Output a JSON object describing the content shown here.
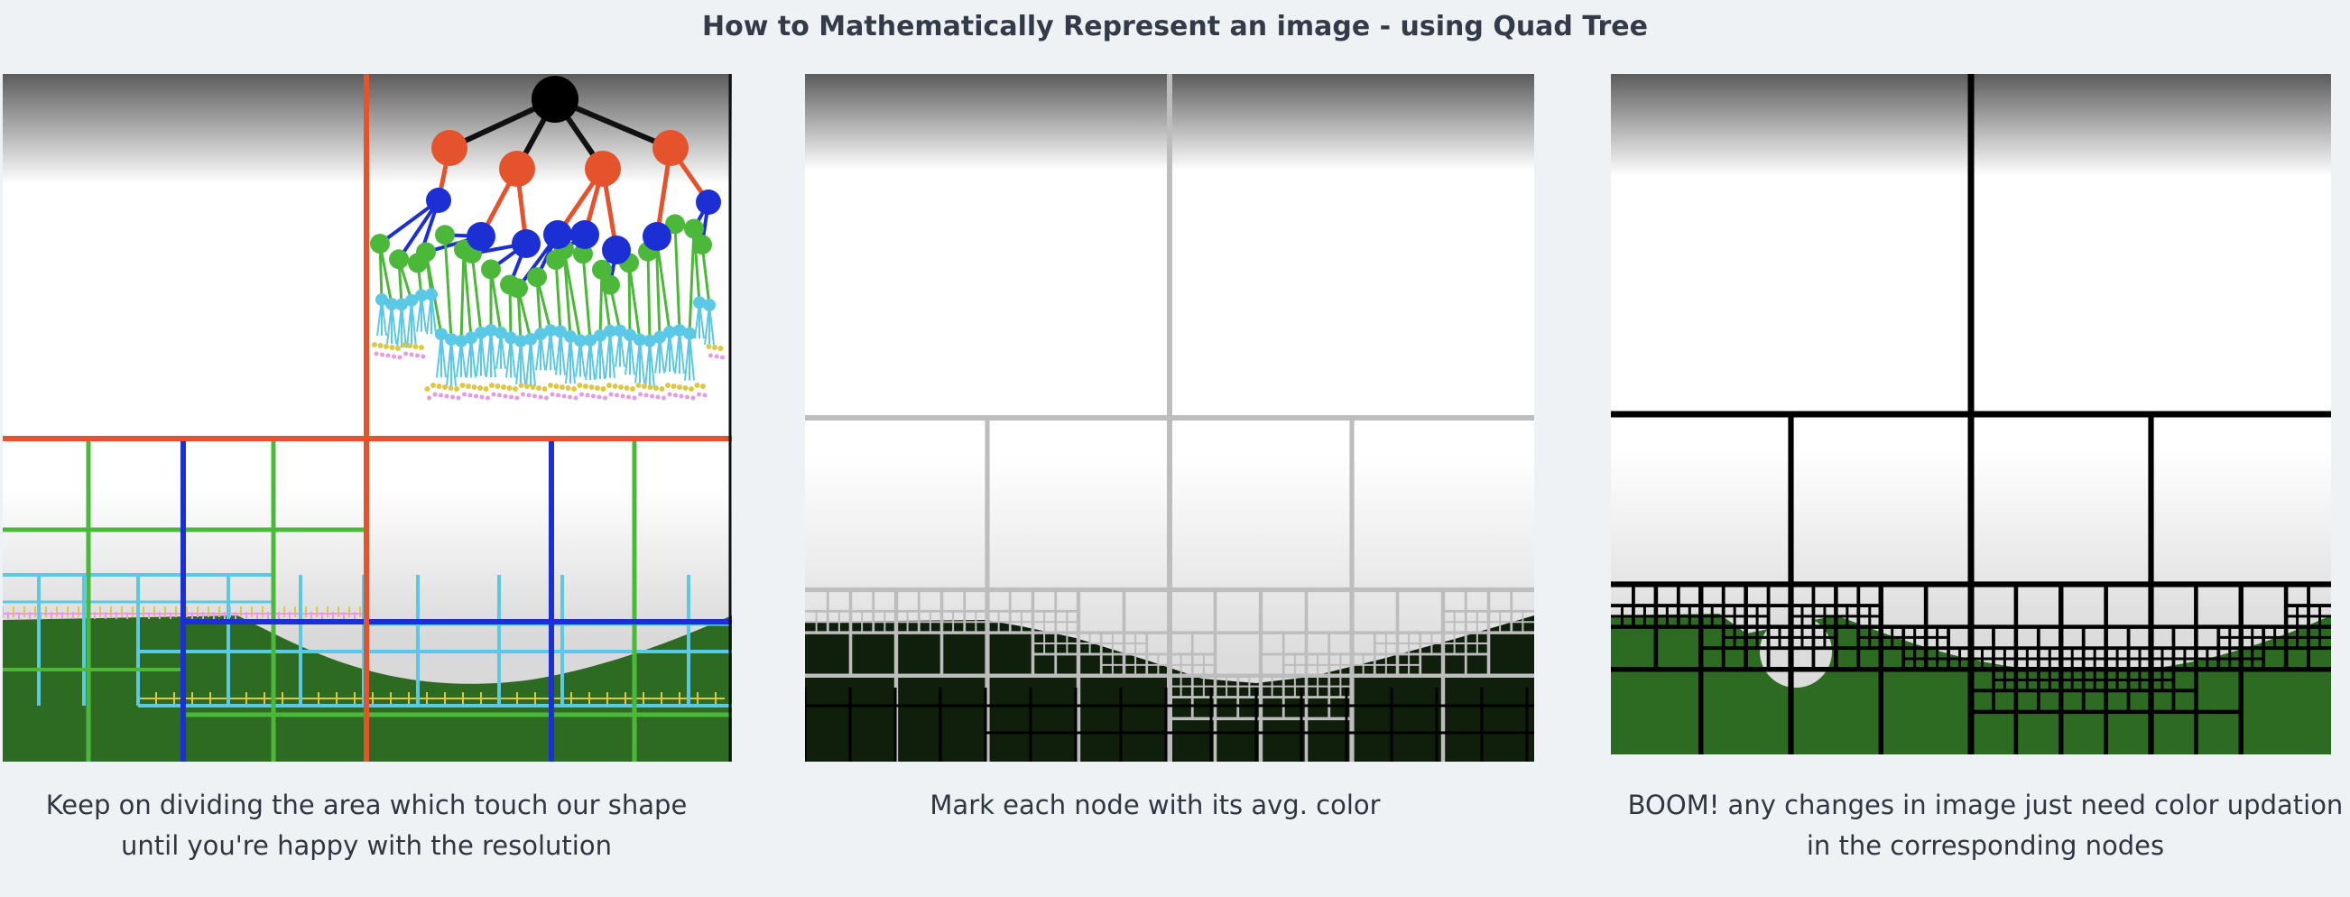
{
  "title": "How to Mathematically Represent an image - using Quad Tree",
  "panels": [
    {
      "caption_line1": "Keep on dividing the area which touch our shape",
      "caption_line2": "until you're happy with the resolution"
    },
    {
      "caption_line1": "Mark each node with its avg. color",
      "caption_line2": ""
    },
    {
      "caption_line1": "BOOM! any changes in image just need color updation",
      "caption_line2": "in the corresponding nodes"
    }
  ],
  "colors": {
    "background": "#eff2f5",
    "ground": "#2e6b22",
    "ground_dark": "#0f1f0c",
    "level1": "#e5532d",
    "level2": "#1c2fd4",
    "level3": "#4cb83a",
    "level4": "#5bc9e6",
    "level5": "#dcc845",
    "level6": "#e79be0",
    "grid_gray": "#bdbdbd",
    "grid_black": "#000000"
  }
}
